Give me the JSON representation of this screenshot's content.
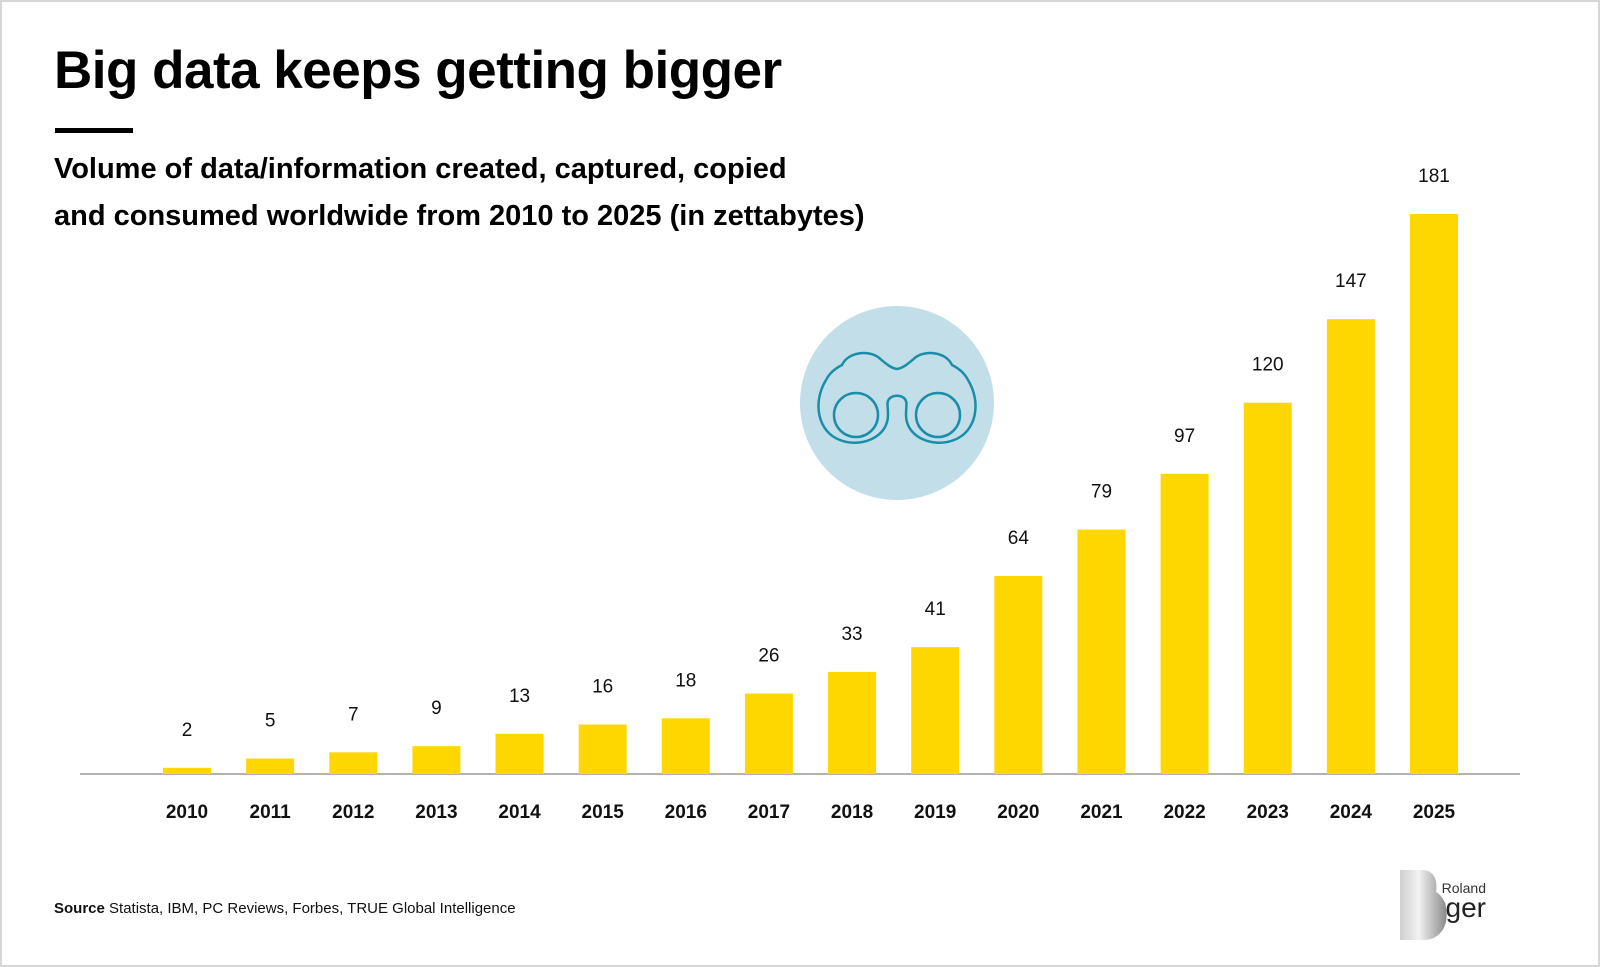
{
  "header": {
    "title": "Big data keeps getting bigger",
    "subtitle_line1": "Volume of data/information created, captured, copied",
    "subtitle_line2": "and consumed worldwide from 2010 to 2025 (in zettabytes)"
  },
  "chart_data": {
    "type": "bar",
    "title": "Big data keeps getting bigger",
    "subtitle": "Volume of data/information created, captured, copied and consumed worldwide from 2010 to 2025 (in zettabytes)",
    "categories": [
      "2010",
      "2011",
      "2012",
      "2013",
      "2014",
      "2015",
      "2016",
      "2017",
      "2018",
      "2019",
      "2020",
      "2021",
      "2022",
      "2023",
      "2024",
      "2025"
    ],
    "values": [
      2,
      5,
      7,
      9,
      13,
      16,
      18,
      26,
      33,
      41,
      64,
      79,
      97,
      120,
      147,
      181
    ],
    "xlabel": "",
    "ylabel": "",
    "ylim": [
      0,
      181
    ],
    "grid": false,
    "data_labels": true,
    "bar_color": "#FFD700"
  },
  "decoration": {
    "icon": "binoculars-icon",
    "circle_color": "#C2DEE8",
    "icon_color": "#1A8DA8"
  },
  "footer": {
    "source_label": "Source",
    "source_text": " Statista, IBM, PC Reviews, Forbes, TRUE Global Intelligence"
  },
  "logo": {
    "line1": "Roland",
    "line2": "Berger"
  }
}
